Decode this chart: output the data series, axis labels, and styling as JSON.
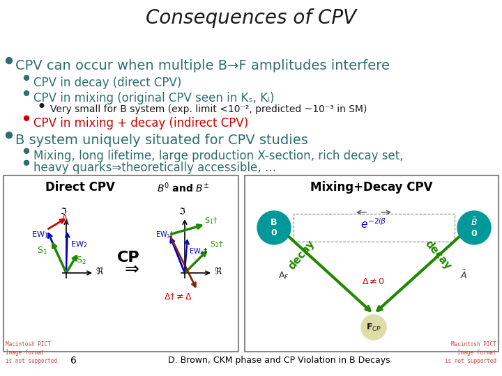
{
  "title": "Consequences of CPV",
  "bg_color": "#ffffff",
  "title_color": "#1a1a1a",
  "title_fontsize": 20,
  "footer_text": "D. Brown, CKM phase and CP Violation in B Decays",
  "footer_page": "6",
  "content": [
    {
      "level": 0,
      "color": "#2e6e6e",
      "text": "CPV can occur when multiple B→F amplitudes interfere",
      "fs": 14
    },
    {
      "level": 1,
      "color": "#2e6e6e",
      "text": "CPV in decay (direct CPV)",
      "fs": 12
    },
    {
      "level": 1,
      "color": "#2e6e6e",
      "text": "CPV in mixing (original CPV seen in Kₛ, Kₗ)",
      "fs": 12
    },
    {
      "level": 2,
      "color": "#1a1a1a",
      "text": "Very small for B system (exp. limit <10⁻², predicted ~10⁻³ in SM)",
      "fs": 10
    },
    {
      "level": 1,
      "color": "#cc0000",
      "text": "CPV in mixing + decay (indirect CPV)",
      "fs": 12
    },
    {
      "level": 0,
      "color": "#2e6e6e",
      "text": "B system uniquely situated for CPV studies",
      "fs": 14
    },
    {
      "level": 1,
      "color": "#2e6e6e",
      "text": "Mixing, long lifetime, large production X-section, rich decay set,",
      "fs": 12
    },
    {
      "level": 1,
      "color": "#2e6e6e",
      "text": "heavy quarks⇒theoretically accessible, …",
      "fs": 12
    }
  ],
  "bullet_color_main": "#2e6e6e",
  "teal": "#008888",
  "green": "#228800",
  "blue": "#0000cc",
  "red": "#cc0000",
  "dark_red": "#882200",
  "box_border": "#888888",
  "box_bg": "#ffffff",
  "note_color": "#cc4444"
}
